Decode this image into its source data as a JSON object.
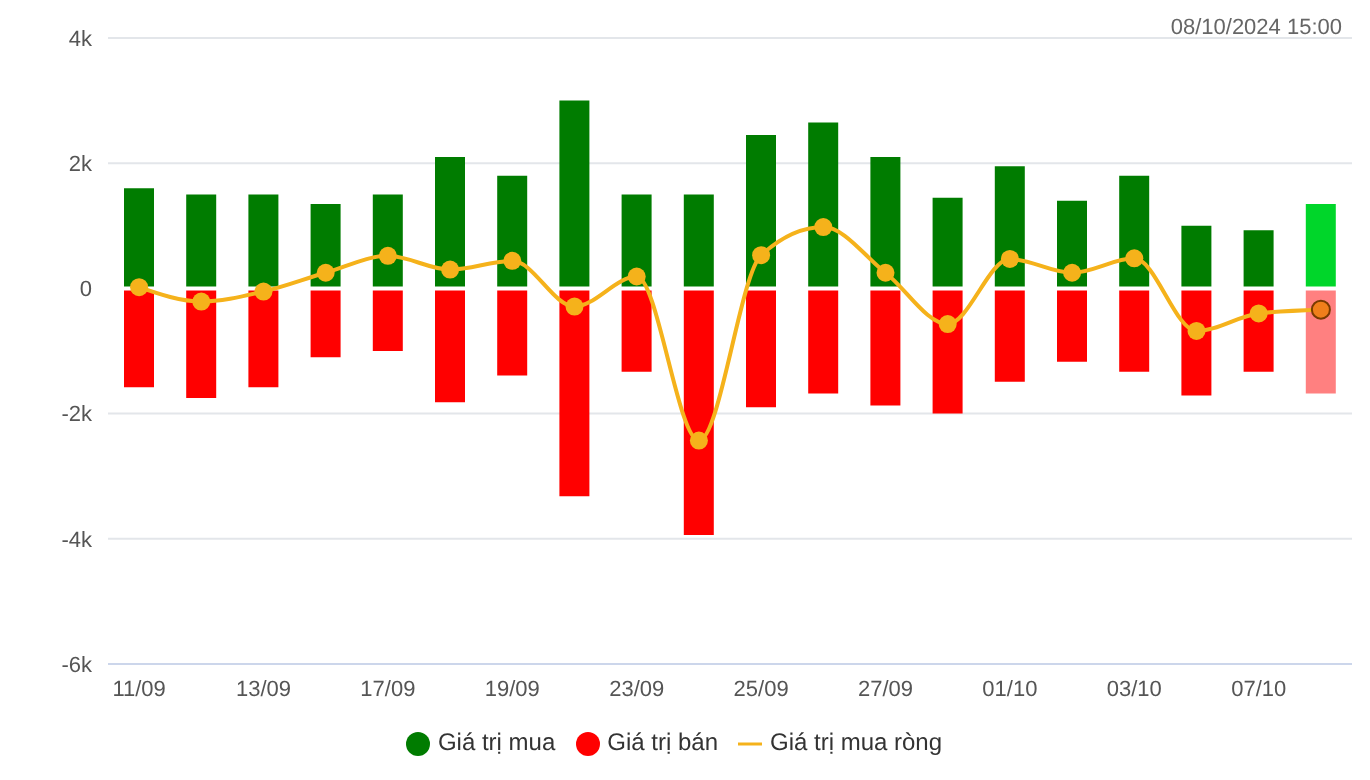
{
  "chart_data": {
    "type": "bar",
    "stacked": true,
    "categories": [
      "11/09",
      null,
      "13/09",
      null,
      "17/09",
      null,
      "19/09",
      null,
      "23/09",
      null,
      "25/09",
      null,
      "27/09",
      null,
      "01/10",
      null,
      "03/10",
      null,
      "07/10",
      null
    ],
    "series": [
      {
        "name": "Giá trị mua",
        "color": "#007c00",
        "colors": [
          "#007c00",
          "#007c00",
          "#007c00",
          "#007c00",
          "#007c00",
          "#007c00",
          "#007c00",
          "#007c00",
          "#007c00",
          "#007c00",
          "#007c00",
          "#007c00",
          "#007c00",
          "#007c00",
          "#007c00",
          "#007c00",
          "#007c00",
          "#007c00",
          "#007c00",
          "#00d62a"
        ],
        "values": [
          1600,
          1500,
          1500,
          1350,
          1500,
          2100,
          1800,
          3000,
          1500,
          1500,
          2450,
          2650,
          2100,
          1450,
          1950,
          1400,
          1800,
          1000,
          930,
          1350
        ]
      },
      {
        "name": "Giá trị bán",
        "color": "#ff0000",
        "colors": [
          "#ff0000",
          "#ff0000",
          "#ff0000",
          "#ff0000",
          "#ff0000",
          "#ff0000",
          "#ff0000",
          "#ff0000",
          "#ff0000",
          "#ff0000",
          "#ff0000",
          "#ff0000",
          "#ff0000",
          "#ff0000",
          "#ff0000",
          "#ff0000",
          "#ff0000",
          "#ff0000",
          "#ff0000",
          "#ff8080"
        ],
        "values": [
          -1580,
          -1750,
          -1580,
          -1100,
          -1000,
          -1820,
          -1390,
          -3320,
          -1330,
          -3940,
          -1900,
          -1680,
          -1870,
          -2000,
          -1490,
          -1170,
          -1330,
          -1710,
          -1330,
          -1680
        ]
      },
      {
        "name": "Giá trị mua ròng",
        "type": "line",
        "color": "#f5b21b",
        "colors": [
          "#f5b21b",
          "#f5b21b",
          "#f5b21b",
          "#f5b21b",
          "#f5b21b",
          "#f5b21b",
          "#f5b21b",
          "#f5b21b",
          "#f5b21b",
          "#f5b21b",
          "#f5b21b",
          "#f5b21b",
          "#f5b21b",
          "#f5b21b",
          "#f5b21b",
          "#f5b21b",
          "#f5b21b",
          "#f5b21b",
          "#f5b21b",
          "#f07f1b"
        ],
        "marker": "circle",
        "values": [
          20,
          -210,
          -50,
          250,
          520,
          300,
          440,
          -290,
          190,
          -2430,
          530,
          980,
          250,
          -570,
          470,
          250,
          480,
          -680,
          -400,
          -340
        ]
      }
    ],
    "ylim": [
      -6000,
      4000
    ],
    "yticks": [
      {
        "value": -6000,
        "label": "-6k"
      },
      {
        "value": -4000,
        "label": "-4k"
      },
      {
        "value": -2000,
        "label": "-2k"
      },
      {
        "value": 0,
        "label": "0"
      },
      {
        "value": 2000,
        "label": "2k"
      },
      {
        "value": 4000,
        "label": "4k"
      }
    ],
    "grid": "y",
    "legend": "bottom",
    "annotations": [
      "08/10/2024 15:00"
    ]
  }
}
